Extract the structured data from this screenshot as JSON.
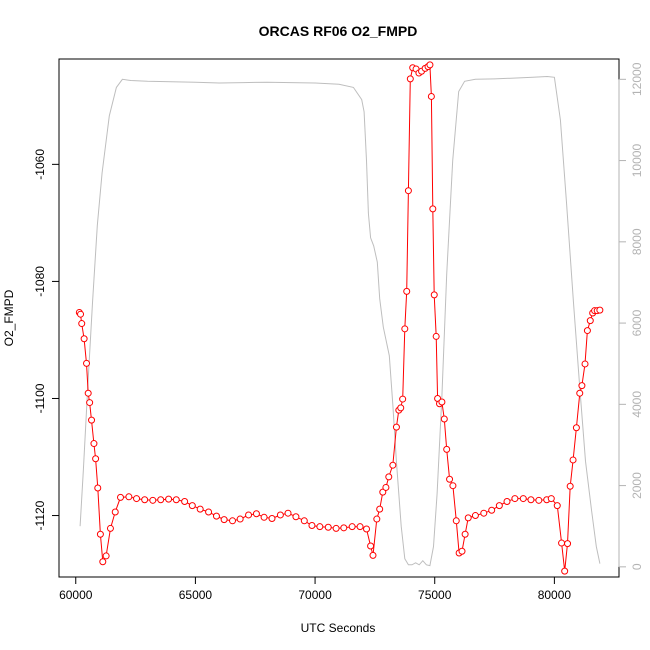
{
  "chart_data": {
    "type": "line",
    "title": "ORCAS RF06 O2_FMPD",
    "xlabel": "UTC Seconds",
    "ylabel": "O2_FMPD",
    "xlim": [
      59300,
      82700
    ],
    "ylim": [
      -1130.5,
      -1042
    ],
    "y2lim": [
      -250,
      12500
    ],
    "x_ticks": [
      60000,
      65000,
      70000,
      75000,
      80000
    ],
    "x_tick_labels": [
      "60000",
      "65000",
      "70000",
      "75000",
      "80000"
    ],
    "y_ticks": [
      -1120,
      -1100,
      -1080,
      -1060
    ],
    "y_tick_labels": [
      "-1120",
      "-1100",
      "-1080",
      "-1060"
    ],
    "y2_ticks": [
      0,
      2000,
      4000,
      6000,
      8000,
      10000,
      12000
    ],
    "y2_tick_labels": [
      "0",
      "2000",
      "4000",
      "6000",
      "8000",
      "10000",
      "12000"
    ],
    "grid": false,
    "series": [
      {
        "color": "#ff0000",
        "marker": "circle-open",
        "axis": "left",
        "points": [
          [
            60150,
            -1085.3
          ],
          [
            60200,
            -1085.6
          ],
          [
            60250,
            -1087.2
          ],
          [
            60350,
            -1089.8
          ],
          [
            60450,
            -1094
          ],
          [
            60520,
            -1099.1
          ],
          [
            60580,
            -1100.7
          ],
          [
            60660,
            -1103.7
          ],
          [
            60760,
            -1107.7
          ],
          [
            60830,
            -1110.3
          ],
          [
            60920,
            -1115.3
          ],
          [
            61030,
            -1123.2
          ],
          [
            61130,
            -1127.9
          ],
          [
            61270,
            -1126.9
          ],
          [
            61450,
            -1122.2
          ],
          [
            61650,
            -1119.4
          ],
          [
            61870,
            -1116.9
          ],
          [
            62220,
            -1116.8
          ],
          [
            62540,
            -1117.1
          ],
          [
            62880,
            -1117.3
          ],
          [
            63220,
            -1117.4
          ],
          [
            63550,
            -1117.3
          ],
          [
            63880,
            -1117.2
          ],
          [
            64200,
            -1117.3
          ],
          [
            64550,
            -1117.6
          ],
          [
            64870,
            -1118.3
          ],
          [
            65200,
            -1118.9
          ],
          [
            65550,
            -1119.4
          ],
          [
            65880,
            -1120.1
          ],
          [
            66200,
            -1120.7
          ],
          [
            66550,
            -1120.9
          ],
          [
            66870,
            -1120.6
          ],
          [
            67220,
            -1119.9
          ],
          [
            67550,
            -1119.7
          ],
          [
            67870,
            -1120.3
          ],
          [
            68200,
            -1120.5
          ],
          [
            68550,
            -1119.9
          ],
          [
            68870,
            -1119.6
          ],
          [
            69200,
            -1120.2
          ],
          [
            69550,
            -1120.9
          ],
          [
            69870,
            -1121.7
          ],
          [
            70200,
            -1121.9
          ],
          [
            70550,
            -1122
          ],
          [
            70880,
            -1122.2
          ],
          [
            71200,
            -1122.1
          ],
          [
            71550,
            -1121.9
          ],
          [
            71880,
            -1121.9
          ],
          [
            72150,
            -1122.3
          ],
          [
            72320,
            -1125.2
          ],
          [
            72420,
            -1126.8
          ],
          [
            72580,
            -1120.6
          ],
          [
            72700,
            -1118.9
          ],
          [
            72830,
            -1116
          ],
          [
            72960,
            -1115.2
          ],
          [
            73080,
            -1113.4
          ],
          [
            73250,
            -1111.4
          ],
          [
            73400,
            -1104.9
          ],
          [
            73500,
            -1102
          ],
          [
            73580,
            -1101.6
          ],
          [
            73660,
            -1100.1
          ],
          [
            73750,
            -1088.1
          ],
          [
            73830,
            -1081.7
          ],
          [
            73900,
            -1064.5
          ],
          [
            73980,
            -1045.4
          ],
          [
            74080,
            -1043.5
          ],
          [
            74220,
            -1043.7
          ],
          [
            74340,
            -1044.4
          ],
          [
            74450,
            -1044.1
          ],
          [
            74600,
            -1043.6
          ],
          [
            74720,
            -1043.3
          ],
          [
            74800,
            -1043
          ],
          [
            74860,
            -1048.4
          ],
          [
            74920,
            -1067.6
          ],
          [
            74980,
            -1082.3
          ],
          [
            75060,
            -1089.4
          ],
          [
            75120,
            -1100
          ],
          [
            75200,
            -1100.9
          ],
          [
            75300,
            -1100.6
          ],
          [
            75400,
            -1103.5
          ],
          [
            75500,
            -1108.7
          ],
          [
            75620,
            -1113.8
          ],
          [
            75760,
            -1114.9
          ],
          [
            75900,
            -1120.9
          ],
          [
            76020,
            -1126.4
          ],
          [
            76140,
            -1126.1
          ],
          [
            76270,
            -1123.2
          ],
          [
            76400,
            -1120.4
          ],
          [
            76700,
            -1120
          ],
          [
            77050,
            -1119.6
          ],
          [
            77380,
            -1119.1
          ],
          [
            77700,
            -1118.3
          ],
          [
            78020,
            -1117.6
          ],
          [
            78350,
            -1117.1
          ],
          [
            78700,
            -1117.1
          ],
          [
            79020,
            -1117.3
          ],
          [
            79350,
            -1117.4
          ],
          [
            79680,
            -1117.3
          ],
          [
            79870,
            -1117.1
          ],
          [
            80120,
            -1118.3
          ],
          [
            80300,
            -1124.7
          ],
          [
            80430,
            -1129.5
          ],
          [
            80550,
            -1124.8
          ],
          [
            80660,
            -1115
          ],
          [
            80780,
            -1110.5
          ],
          [
            80920,
            -1105
          ],
          [
            81060,
            -1099.1
          ],
          [
            81150,
            -1097.8
          ],
          [
            81280,
            -1094.1
          ],
          [
            81380,
            -1088.4
          ],
          [
            81500,
            -1086.7
          ],
          [
            81600,
            -1085.4
          ],
          [
            81680,
            -1085
          ],
          [
            81790,
            -1085
          ],
          [
            81900,
            -1084.9
          ]
        ]
      },
      {
        "color": "#bebebe",
        "marker": "none",
        "axis": "right",
        "points": [
          [
            60180,
            1000
          ],
          [
            60320,
            2400
          ],
          [
            60500,
            4400
          ],
          [
            60700,
            6500
          ],
          [
            60900,
            8400
          ],
          [
            61100,
            9700
          ],
          [
            61400,
            11100
          ],
          [
            61700,
            11800
          ],
          [
            61950,
            12000
          ],
          [
            62300,
            11970
          ],
          [
            63000,
            11950
          ],
          [
            64000,
            11940
          ],
          [
            65000,
            11930
          ],
          [
            66000,
            11910
          ],
          [
            67000,
            11920
          ],
          [
            68000,
            11930
          ],
          [
            69000,
            11920
          ],
          [
            70000,
            11910
          ],
          [
            71000,
            11880
          ],
          [
            71600,
            11800
          ],
          [
            71950,
            11500
          ],
          [
            72050,
            11200
          ],
          [
            72150,
            10000
          ],
          [
            72230,
            8700
          ],
          [
            72320,
            8100
          ],
          [
            72450,
            7900
          ],
          [
            72600,
            7500
          ],
          [
            72700,
            6600
          ],
          [
            72850,
            5900
          ],
          [
            73100,
            5200
          ],
          [
            73250,
            4000
          ],
          [
            73400,
            2600
          ],
          [
            73600,
            1000
          ],
          [
            73750,
            200
          ],
          [
            73900,
            50
          ],
          [
            74050,
            50
          ],
          [
            74200,
            100
          ],
          [
            74350,
            50
          ],
          [
            74500,
            150
          ],
          [
            74650,
            50
          ],
          [
            74800,
            30
          ],
          [
            74950,
            500
          ],
          [
            75100,
            1800
          ],
          [
            75300,
            4200
          ],
          [
            75500,
            7200
          ],
          [
            75750,
            10000
          ],
          [
            76000,
            11700
          ],
          [
            76250,
            11950
          ],
          [
            76700,
            12000
          ],
          [
            77500,
            12010
          ],
          [
            78300,
            12030
          ],
          [
            79100,
            12050
          ],
          [
            79700,
            12070
          ],
          [
            80000,
            12050
          ],
          [
            80250,
            11000
          ],
          [
            80500,
            9000
          ],
          [
            80800,
            6500
          ],
          [
            81050,
            4500
          ],
          [
            81300,
            2600
          ],
          [
            81550,
            1400
          ],
          [
            81750,
            500
          ],
          [
            81900,
            80
          ]
        ]
      }
    ]
  }
}
